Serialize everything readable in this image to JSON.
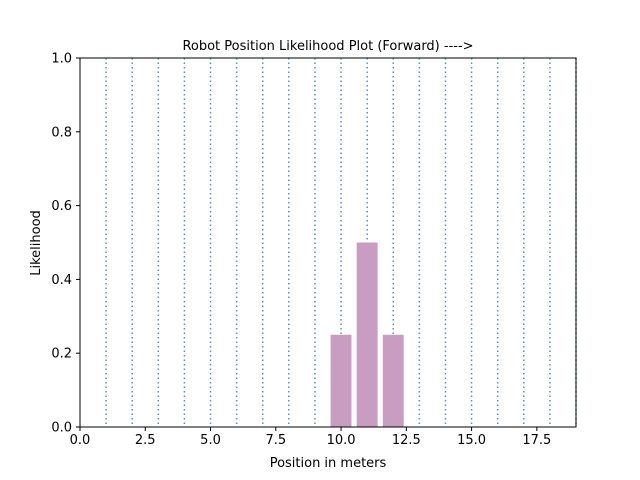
{
  "chart_data": {
    "type": "bar",
    "title": "Robot Position Likelihood Plot (Forward) ---->",
    "xlabel": "Position in meters",
    "ylabel": "Likelihood",
    "xlim": [
      0,
      19
    ],
    "ylim": [
      0,
      1.0
    ],
    "x_ticks": [
      "0.0",
      "2.5",
      "5.0",
      "7.5",
      "10.0",
      "12.5",
      "15.0",
      "17.5"
    ],
    "x_tick_values": [
      0,
      2.5,
      5.0,
      7.5,
      10.0,
      12.5,
      15.0,
      17.5
    ],
    "y_ticks": [
      "0.0",
      "0.2",
      "0.4",
      "0.6",
      "0.8",
      "1.0"
    ],
    "y_tick_values": [
      0,
      0.2,
      0.4,
      0.6,
      0.8,
      1.0
    ],
    "bars": [
      {
        "x": 10,
        "value": 0.25
      },
      {
        "x": 11,
        "value": 0.5
      },
      {
        "x": 12,
        "value": 0.25
      }
    ],
    "bar_width": 0.8,
    "dotted_vlines": [
      1,
      2,
      3,
      4,
      5,
      6,
      7,
      8,
      9,
      10,
      11,
      12,
      13,
      14,
      15,
      16,
      17,
      18,
      19
    ],
    "bar_color": "#c99dc1",
    "vline_color": "#5b8fbf",
    "grid": false,
    "legend": "none"
  }
}
